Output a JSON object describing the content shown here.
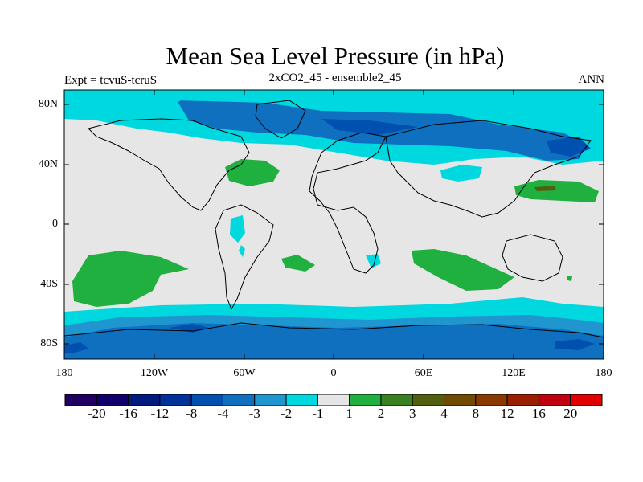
{
  "title": "Mean Sea Level Pressure (in hPa)",
  "subtitle_left": "Expt = tcvuS-tcruS",
  "subtitle_center": "2xCO2_45 - ensemble2_45",
  "subtitle_right": "ANN",
  "lat_labels": [
    "80N",
    "40N",
    "0",
    "40S",
    "80S"
  ],
  "lon_labels": [
    "180",
    "120W",
    "60W",
    "0",
    "60E",
    "120E",
    "180"
  ],
  "colorbar": {
    "colors": [
      "#200060",
      "#10006e",
      "#001a80",
      "#00309a",
      "#0050b0",
      "#1070c0",
      "#2096d0",
      "#00d8e0",
      "#e6e6e6",
      "#20b040",
      "#3a8020",
      "#506010",
      "#704a00",
      "#8a3a00",
      "#9a2000",
      "#c00010",
      "#e00000"
    ],
    "labels": [
      "-20",
      "-16",
      "-12",
      "-8",
      "-4",
      "-3",
      "-2",
      "-1",
      "1",
      "2",
      "3",
      "4",
      "8",
      "12",
      "16",
      "20"
    ]
  },
  "fill_colors": {
    "neutral": "#e6e6e6",
    "cyan": "#00d8e0",
    "light_blue": "#2096d0",
    "blue": "#1070c0",
    "deep_blue": "#0050b0",
    "navy": "#00309a",
    "green": "#20b040",
    "olive": "#506010"
  }
}
